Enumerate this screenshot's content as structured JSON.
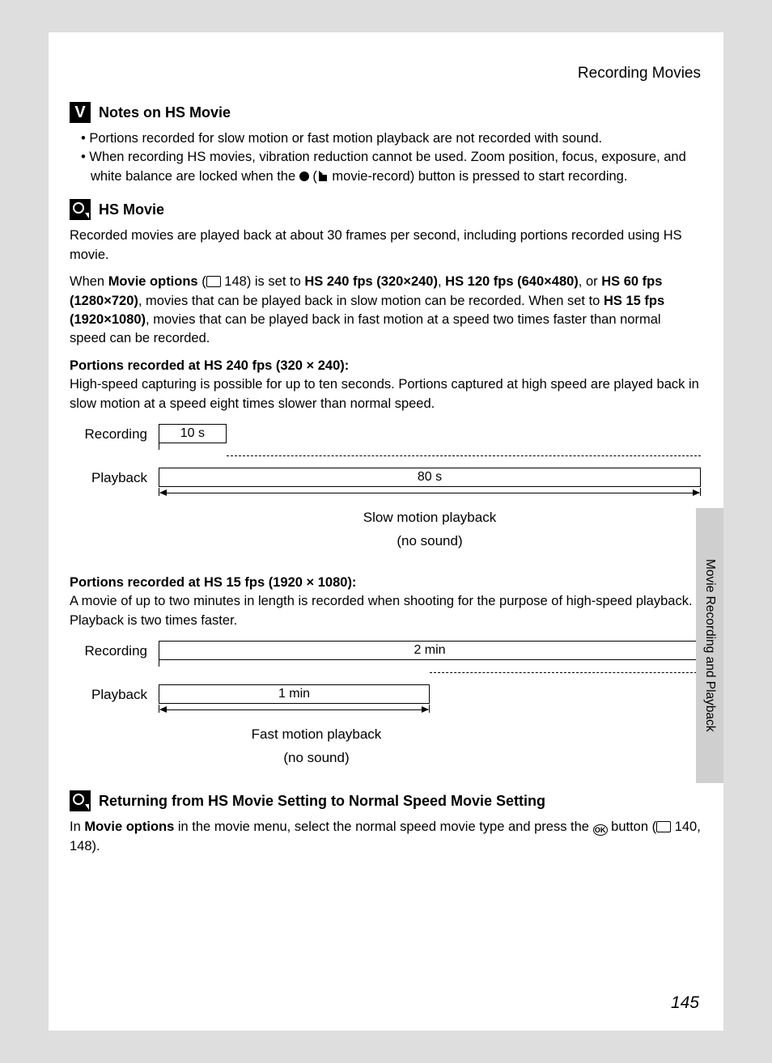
{
  "page": {
    "header": "Recording Movies",
    "sideTab": "Movie Recording and Playback",
    "pageNumber": "145"
  },
  "section1": {
    "title": "Notes on HS Movie",
    "bullets": [
      "Portions recorded for slow motion or fast motion playback are not recorded with sound.",
      "When recording HS movies, vibration reduction cannot be used. Zoom position, focus, exposure, and white balance are locked when the "
    ],
    "bullet2_suffix": " movie-record) button is pressed to start recording."
  },
  "section2": {
    "title": "HS Movie",
    "p1": "Recorded movies are played back at about 30 frames per second, including portions recorded using HS movie.",
    "p2a": "When ",
    "p2b": "Movie options",
    "p2c": " (",
    "p2d": " 148) is set to ",
    "p2e": "HS 240 fps (320×240)",
    "p2f": ", ",
    "p2g": "HS 120 fps (640×480)",
    "p2h": ", or ",
    "p2i": "HS 60 fps (1280×720)",
    "p2j": ", movies that can be played back in slow motion can be recorded. When set to ",
    "p2k": "HS 15 fps (1920×1080)",
    "p2l": ", movies that can be played back in fast motion at a speed two times faster than normal speed can be recorded."
  },
  "sub1": {
    "head": "Portions recorded at HS 240 fps (320 × 240):",
    "body": "High-speed capturing is possible for up to ten seconds. Portions captured at high speed are played back in slow motion at a speed eight times slower than normal speed."
  },
  "diagram1": {
    "rowLabels": {
      "rec": "Recording",
      "play": "Playback"
    },
    "recBar": "10 s",
    "playBar": "80 s",
    "recBarWidthPct": 12.5,
    "playBarWidthPct": 100,
    "caption1": "Slow motion playback",
    "caption2": "(no sound)"
  },
  "sub2": {
    "head": "Portions recorded at HS 15 fps (1920 × 1080):",
    "body": "A movie of up to two minutes in length is recorded when shooting for the purpose of high-speed playback. Playback is two times faster."
  },
  "diagram2": {
    "rowLabels": {
      "rec": "Recording",
      "play": "Playback"
    },
    "recBar": "2 min",
    "playBar": "1 min",
    "recBarWidthPct": 100,
    "playBarWidthPct": 50,
    "caption1": "Fast motion playback",
    "caption2": "(no sound)"
  },
  "section3": {
    "title": "Returning from HS Movie Setting to Normal Speed Movie Setting",
    "p_a": "In ",
    "p_b": "Movie options",
    "p_c": " in the movie menu, select the normal speed movie type and press the ",
    "p_d": " button (",
    "p_e": " 140, 148)."
  },
  "colors": {
    "pageBg": "#ffffff",
    "bodyBg": "#dedede",
    "tabBg": "#cfcfd0",
    "text": "#000000"
  }
}
